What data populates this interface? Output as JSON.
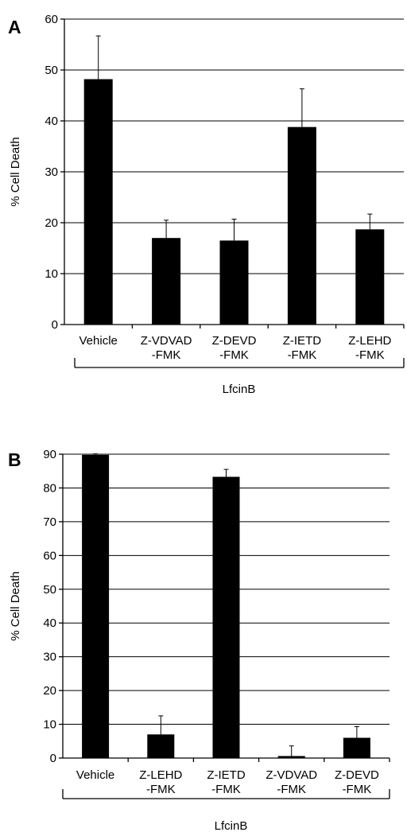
{
  "chart_data": [
    {
      "type": "bar",
      "panel_label": "A",
      "ylabel": "% Cell Death",
      "ylim": [
        0,
        60
      ],
      "yticks": [
        "0",
        "10",
        "20",
        "30",
        "40",
        "50",
        "60"
      ],
      "grid": true,
      "categories": [
        [
          "Vehicle"
        ],
        [
          "Z-VDVAD",
          "-FMK"
        ],
        [
          "Z-DEVD",
          "-FMK"
        ],
        [
          "Z-IETD",
          "-FMK"
        ],
        [
          "Z-LEHD",
          "-FMK"
        ]
      ],
      "values": [
        48.2,
        17.0,
        16.5,
        38.8,
        18.7
      ],
      "error_upper": [
        8.5,
        3.5,
        4.2,
        7.5,
        3.0
      ],
      "group_label": "LfcinB"
    },
    {
      "type": "bar",
      "panel_label": "B",
      "ylabel": "% Cell Death",
      "ylim": [
        0,
        90
      ],
      "yticks": [
        "0",
        "10",
        "20",
        "30",
        "40",
        "50",
        "60",
        "70",
        "80",
        "90"
      ],
      "grid": true,
      "categories": [
        [
          "Vehicle"
        ],
        [
          "Z-LEHD",
          "-FMK"
        ],
        [
          "Z-IETD",
          "-FMK"
        ],
        [
          "Z-VDVAD",
          "-FMK"
        ],
        [
          "Z-DEVD",
          "-FMK"
        ]
      ],
      "values": [
        89.8,
        7.0,
        83.3,
        0.6,
        6.0
      ],
      "error_upper": [
        0.3,
        5.5,
        2.2,
        3.0,
        3.3
      ],
      "group_label": "LfcinB"
    }
  ]
}
